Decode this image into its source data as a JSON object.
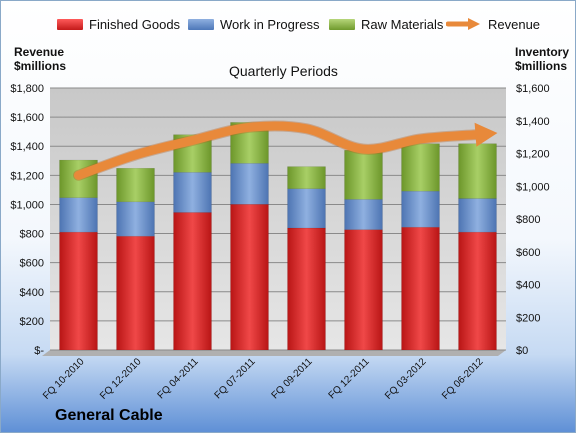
{
  "legend": {
    "finished_goods": "Finished Goods",
    "work_in_progress": "Work in Progress",
    "raw_materials": "Raw Materials",
    "revenue": "Revenue"
  },
  "company": "General Cable",
  "colors": {
    "finished_goods": "#d42a2a",
    "work_in_progress": "#6a8fc8",
    "raw_materials": "#8cb24a",
    "revenue": "#e8893a"
  },
  "chart_data": {
    "type": "bar",
    "stacked": true,
    "title": "Quarterly Periods",
    "ylabel_left": "Revenue\n$millions",
    "ylabel_right": "Inventory\n$millions",
    "categories": [
      "FQ 10-2010",
      "FQ 12-2010",
      "FQ 04-2011",
      "FQ 07-2011",
      "FQ 09-2011",
      "FQ 12-2011",
      "FQ 03-2012",
      "FQ 06-2012"
    ],
    "left_axis": {
      "ylim": [
        0,
        1800
      ],
      "ticks": [
        "$-",
        "$200",
        "$400",
        "$600",
        "$800",
        "$1,000",
        "$1,200",
        "$1,400",
        "$1,600",
        "$1,800"
      ]
    },
    "right_axis": {
      "ylim": [
        0,
        1600
      ],
      "ticks": [
        "$0",
        "$200",
        "$400",
        "$600",
        "$800",
        "$1,000",
        "$1,200",
        "$1,400",
        "$1,600"
      ]
    },
    "series": [
      {
        "name": "Finished Goods",
        "axis": "right",
        "values": [
          720,
          695,
          840,
          890,
          745,
          735,
          750,
          720
        ]
      },
      {
        "name": "Work in Progress",
        "axis": "right",
        "values": [
          210,
          210,
          245,
          250,
          240,
          185,
          220,
          205
        ]
      },
      {
        "name": "Raw Materials",
        "axis": "right",
        "values": [
          230,
          205,
          230,
          250,
          135,
          300,
          290,
          335
        ]
      },
      {
        "name": "Revenue",
        "type": "line",
        "axis": "left",
        "values": [
          1200,
          1340,
          1440,
          1530,
          1520,
          1380,
          1450,
          1480
        ]
      }
    ],
    "grid": true,
    "legend_position": "top"
  }
}
